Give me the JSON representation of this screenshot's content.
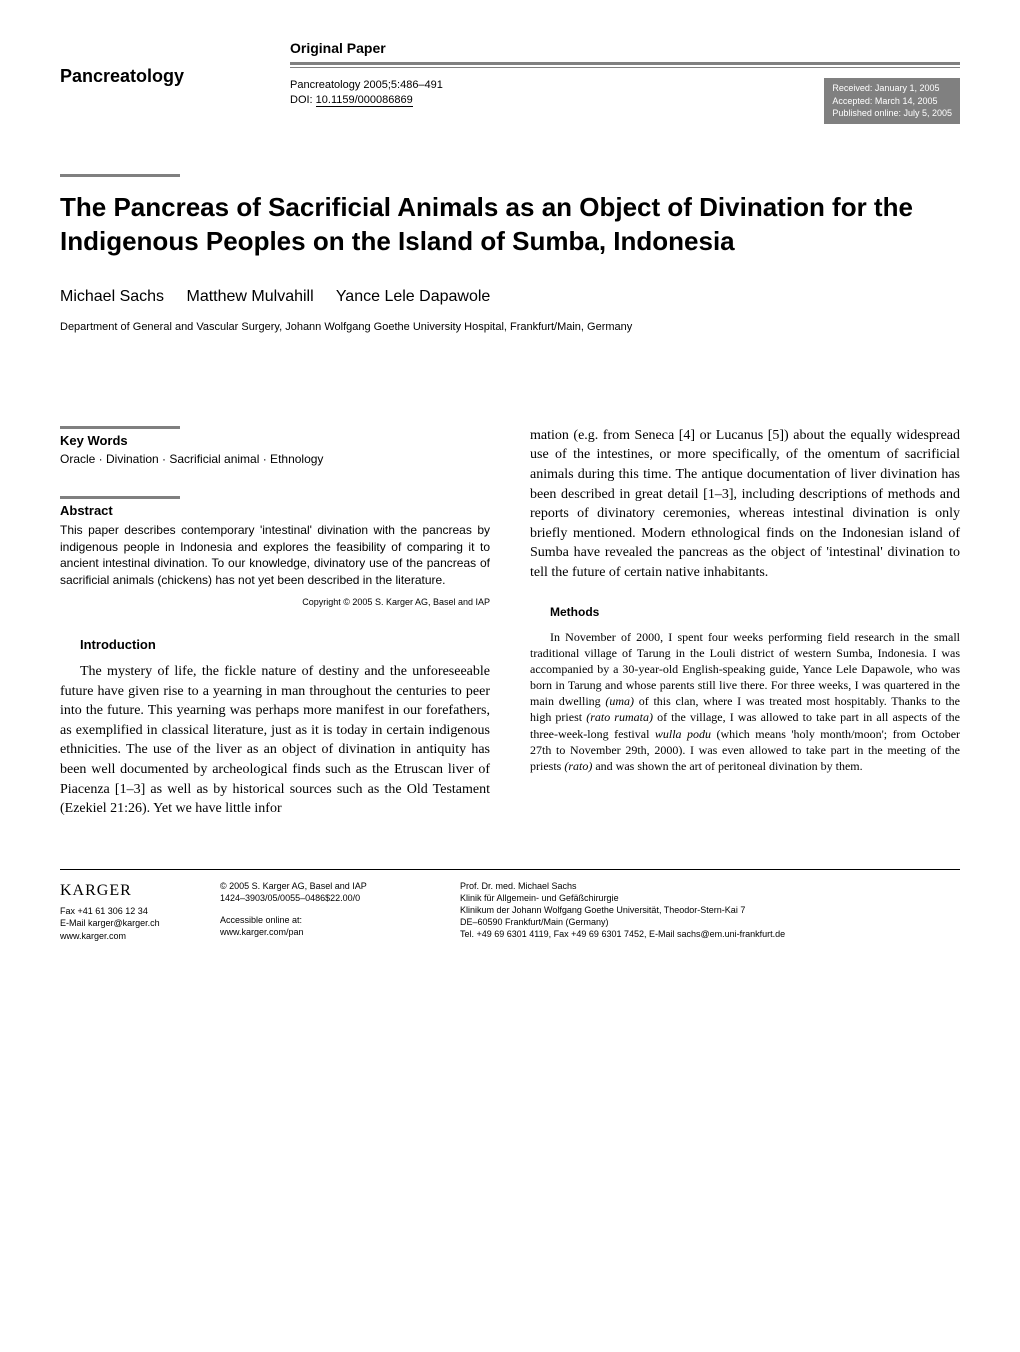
{
  "journal_name": "Pancreatology",
  "paper_type": "Original Paper",
  "citation": {
    "line1": "Pancreatology 2005;5:486–491",
    "doi_label": "DOI: ",
    "doi": "10.1159/000086869"
  },
  "dates": {
    "received": "Received: January 1, 2005",
    "accepted": "Accepted: March 14, 2005",
    "published": "Published online: July 5, 2005"
  },
  "title": "The Pancreas of Sacrificial Animals as an Object of Divination for the Indigenous Peoples on the Island of Sumba, Indonesia",
  "authors": [
    "Michael Sachs",
    "Matthew Mulvahill",
    "Yance Lele Dapawole"
  ],
  "affiliation": "Department of General and Vascular Surgery, Johann Wolfgang Goethe University Hospital, Frankfurt/Main, Germany",
  "keywords": {
    "heading": "Key Words",
    "text": "Oracle · Divination · Sacrificial animal · Ethnology"
  },
  "abstract": {
    "heading": "Abstract",
    "text": "This paper describes contemporary 'intestinal' divination with the pancreas by indigenous people in Indonesia and explores the feasibility of comparing it to ancient intestinal divination. To our knowledge, divinatory use of the pancreas of sacrificial animals (chickens) has not yet been described in the literature.",
    "copyright": "Copyright © 2005 S. Karger AG, Basel and IAP"
  },
  "introduction": {
    "heading": "Introduction",
    "para1_part1": "The mystery of life, the fickle nature of destiny and the unforeseeable future have given rise to a yearning in man throughout the centuries to peer into the future. This yearning was perhaps more manifest in our forefathers, as exemplified in classical literature, just as it is today in certain indigenous ethnicities. The use of the liver as an object of divination in antiquity has been well documented by archeological finds such as the Etruscan liver of Piacenza [1–3] as well as by historical sources such as the Old Testament (Ezekiel 21:26). Yet we have little infor",
    "para1_part2": "mation (e.g. from Seneca [4] or Lucanus [5]) about the equally widespread use of the intestines, or more specifically, of the omentum of sacrificial animals during this time. The antique documentation of liver divination has been described in great detail [1–3], including descriptions of methods and reports of divinatory ceremonies, whereas intestinal divination is only briefly mentioned. Modern ethnological finds on the Indonesian island of Sumba have revealed the pancreas as the object of 'intestinal' divination to tell the future of certain native inhabitants."
  },
  "methods": {
    "heading": "Methods",
    "para1_a": "In November of 2000, I spent four weeks performing field research in the small traditional village of Tarung in the Louli district of western Sumba, Indonesia. I was accompanied by a 30-year-old English-speaking guide, Yance Lele Dapawole, who was born in Tarung and whose parents still live there. For three weeks, I was quartered in the main dwelling ",
    "uma": "(uma)",
    "para1_b": " of this clan, where I was treated most hospitably. Thanks to the high priest ",
    "rato_rumata": "(rato rumata)",
    "para1_c": " of the village, I was allowed to take part in all aspects of the three-week-long festival ",
    "wulla_podu": "wulla podu",
    "para1_d": " (which means 'holy month/moon'; from October 27th to November 29th, 2000). I was even allowed to take part in the meeting of the priests ",
    "rato": "(rato)",
    "para1_e": " and was shown the art of peritoneal divination by them."
  },
  "footer": {
    "karger": "KARGER",
    "col1": {
      "fax": "Fax +41 61 306 12 34",
      "email": "E-Mail karger@karger.ch",
      "www": "www.karger.com"
    },
    "col2": {
      "line1": "© 2005 S. Karger AG, Basel and IAP",
      "line2": "1424–3903/05/0055–0486$22.00/0",
      "line3": "Accessible online at:",
      "line4": "www.karger.com/pan"
    },
    "col3": {
      "line1": "Prof. Dr. med. Michael Sachs",
      "line2": "Klinik für Allgemein- und Gefäßchirurgie",
      "line3": "Klinikum der Johann Wolfgang Goethe Universität, Theodor-Stern-Kai 7",
      "line4": "DE–60590 Frankfurt/Main (Germany)",
      "line5": "Tel. +49 69 6301 4119, Fax +49 69 6301 7452, E-Mail sachs@em.uni-frankfurt.de"
    }
  },
  "colors": {
    "rule_gray": "#808080",
    "box_gray": "#808080",
    "text_black": "#000000",
    "bg_white": "#ffffff"
  },
  "typography": {
    "title_fontsize": 26,
    "body_fontsize": 14,
    "abstract_fontsize": 12,
    "footer_fontsize": 9
  }
}
